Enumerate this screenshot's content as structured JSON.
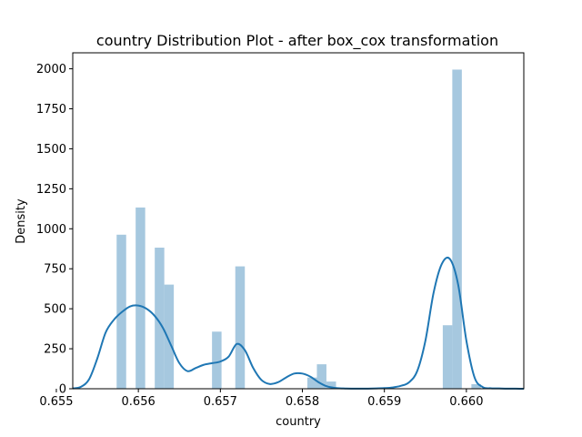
{
  "chart_data": {
    "type": "bar",
    "title": "country Distribution Plot - after box_cox transformation",
    "xlabel": "country",
    "ylabel": "Density",
    "xlim": [
      0.6552,
      0.6607
    ],
    "ylim": [
      0,
      2100
    ],
    "x_ticks": [
      0.655,
      0.656,
      0.657,
      0.658,
      0.659,
      0.66
    ],
    "x_tick_labels": [
      "0.655",
      "0.656",
      "0.657",
      "0.658",
      "0.659",
      "0.660"
    ],
    "y_ticks": [
      0,
      250,
      500,
      750,
      1000,
      1250,
      1500,
      1750,
      2000
    ],
    "y_tick_labels": [
      "0",
      "250",
      "500",
      "750",
      "1000",
      "1250",
      "1500",
      "1750",
      "2000"
    ],
    "grid": false,
    "bar_color": "#a6c8df",
    "kde_color": "#1f77b4",
    "histogram": {
      "bin_width": 0.0001163,
      "bins": [
        {
          "x_start": 0.655735,
          "density": 963
        },
        {
          "x_start": 0.655967,
          "density": 1133
        },
        {
          "x_start": 0.6562,
          "density": 882
        },
        {
          "x_start": 0.656316,
          "density": 651
        },
        {
          "x_start": 0.656898,
          "density": 357
        },
        {
          "x_start": 0.657182,
          "density": 765
        },
        {
          "x_start": 0.658061,
          "density": 70
        },
        {
          "x_start": 0.658177,
          "density": 153
        },
        {
          "x_start": 0.658294,
          "density": 45
        },
        {
          "x_start": 0.659712,
          "density": 397
        },
        {
          "x_start": 0.659828,
          "density": 1995
        },
        {
          "x_start": 0.660061,
          "density": 29
        }
      ]
    },
    "kde": {
      "x": [
        0.6552,
        0.6553,
        0.6554,
        0.6555,
        0.6556,
        0.6557,
        0.6558,
        0.6559,
        0.656,
        0.6561,
        0.6562,
        0.6563,
        0.6564,
        0.6565,
        0.6566,
        0.6567,
        0.6568,
        0.6569,
        0.657,
        0.6571,
        0.6572,
        0.6573,
        0.6574,
        0.6575,
        0.6576,
        0.6577,
        0.6578,
        0.6579,
        0.658,
        0.6581,
        0.6582,
        0.6583,
        0.6584,
        0.6585,
        0.6586,
        0.6587,
        0.6588,
        0.6589,
        0.659,
        0.6591,
        0.6592,
        0.6593,
        0.6594,
        0.6595,
        0.6596,
        0.6597,
        0.6598,
        0.6599,
        0.66,
        0.6601,
        0.6602,
        0.6603,
        0.6604,
        0.6605,
        0.6606,
        0.6607
      ],
      "y": [
        2,
        12,
        60,
        190,
        350,
        430,
        480,
        515,
        520,
        500,
        455,
        380,
        270,
        160,
        110,
        130,
        150,
        160,
        170,
        200,
        280,
        240,
        130,
        55,
        30,
        40,
        70,
        95,
        95,
        75,
        40,
        15,
        5,
        2,
        1,
        1,
        1,
        2,
        4,
        8,
        18,
        40,
        110,
        300,
        600,
        780,
        810,
        650,
        300,
        70,
        10,
        3,
        2,
        1,
        1,
        0
      ]
    }
  }
}
